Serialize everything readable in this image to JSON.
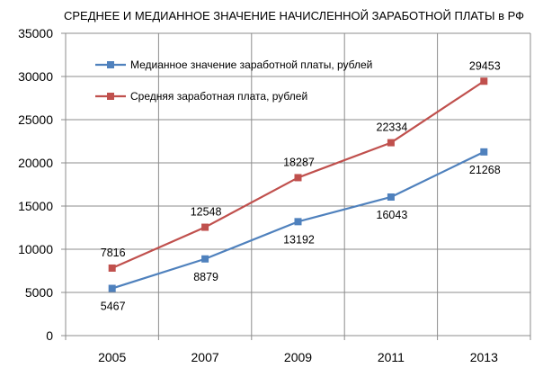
{
  "chart_data": {
    "type": "line",
    "title": "СРЕДНЕЕ И МЕДИАННОЕ ЗНАЧЕНИЕ НАЧИСЛЕННОЙ ЗАРАБОТНОЙ ПЛАТЫ в РФ",
    "xlabel": "",
    "ylabel": "",
    "categories": [
      "2005",
      "2007",
      "2009",
      "2011",
      "2013"
    ],
    "ylim": [
      0,
      35000
    ],
    "yticks": [
      "0",
      "5000",
      "10000",
      "15000",
      "20000",
      "25000",
      "30000",
      "35000"
    ],
    "grid": true,
    "legend_position": "top-left",
    "series": [
      {
        "name": "Медианное значение заработной платы, рублей",
        "color": "#4f81bd",
        "values": [
          5467,
          8879,
          13192,
          16043,
          21268
        ],
        "labels": [
          "5467",
          "8879",
          "13192",
          "16043",
          "21268"
        ],
        "label_position": "below"
      },
      {
        "name": "Средняя заработная плата, рублей",
        "color": "#c0504d",
        "values": [
          7816,
          12548,
          18287,
          22334,
          29453
        ],
        "labels": [
          "7816",
          "12548",
          "18287",
          "22334",
          "29453"
        ],
        "label_position": "above"
      }
    ]
  }
}
